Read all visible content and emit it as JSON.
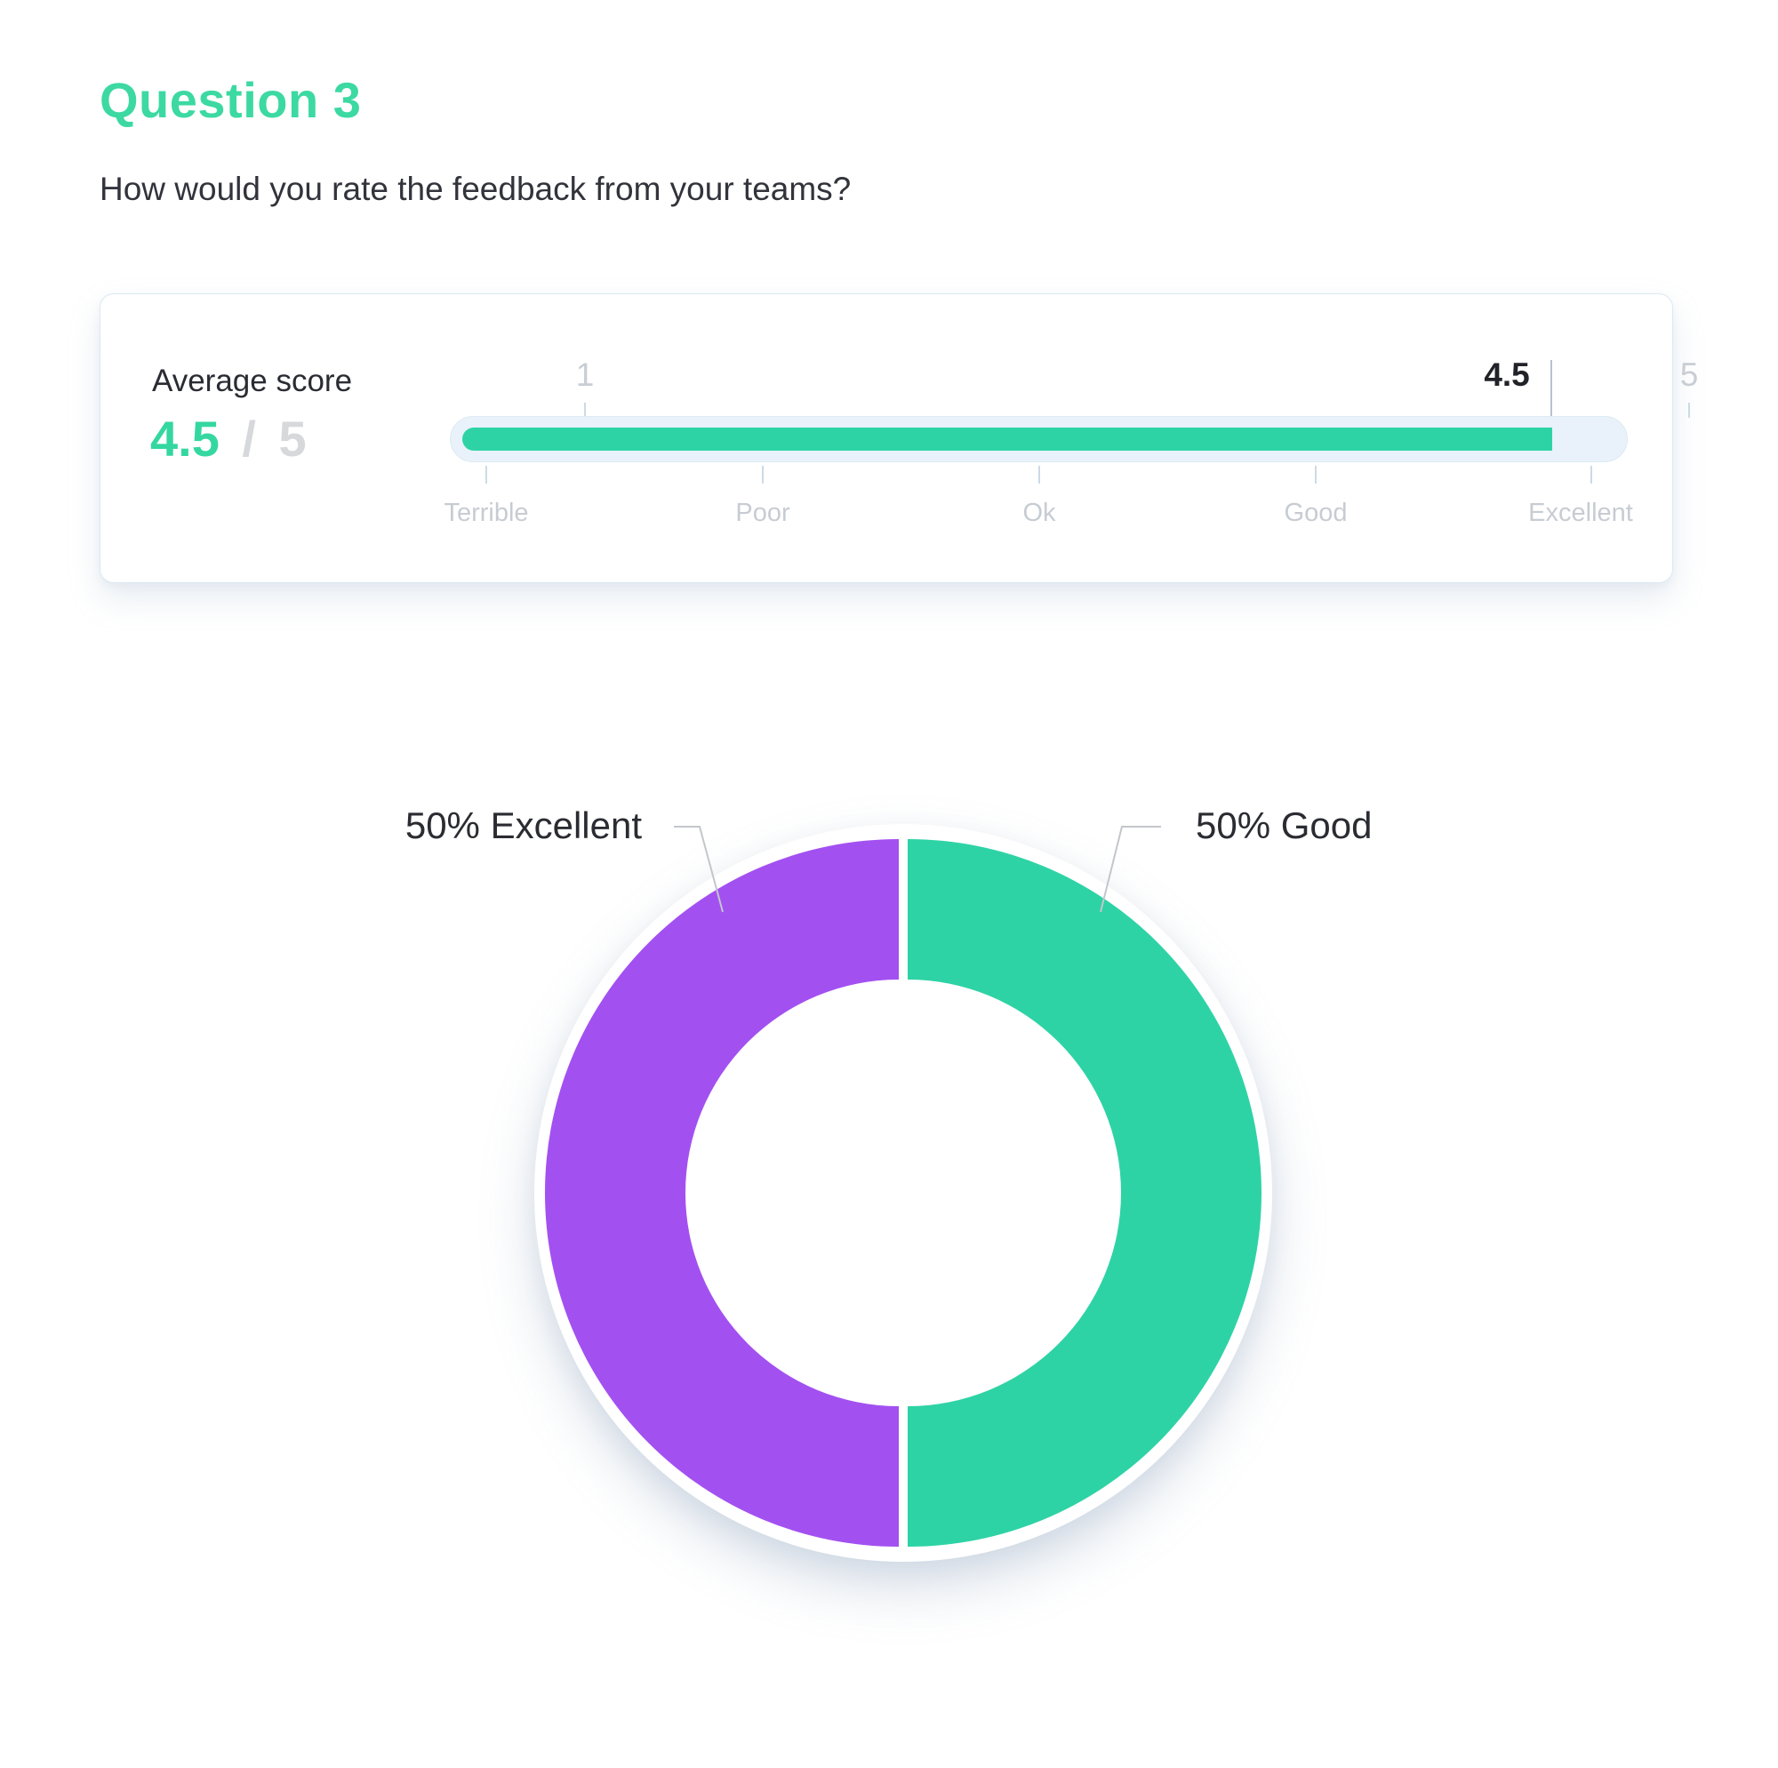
{
  "header": {
    "title": "Question 3",
    "subtitle": "How would you rate the feedback from your teams?"
  },
  "score_card": {
    "label": "Average score",
    "score_value": "4.5",
    "score_separator": "/",
    "score_max": "5",
    "scale": {
      "min": 1,
      "max": 5,
      "value": 4.5,
      "min_label": "1",
      "max_label": "5",
      "value_label": "4.5",
      "tick_labels": [
        "Terrible",
        "Poor",
        "Ok",
        "Good",
        "Excellent"
      ]
    }
  },
  "chart_data": {
    "type": "pie",
    "donut": true,
    "title": "",
    "categories": [
      "Excellent",
      "Good"
    ],
    "values": [
      50,
      50
    ],
    "unit": "percent",
    "callout_labels": [
      "50% Excellent",
      "50% Good"
    ],
    "colors": [
      "#a350f1",
      "#2ed3a5"
    ],
    "legend_position": "callouts",
    "inner_radius_ratio": 0.6,
    "start_angle_deg": 0
  },
  "colors": {
    "title_green": "#3cd9a2",
    "accent_green": "#2ed3a5",
    "purple": "#a350f1",
    "track_blue": "#e9f2fa",
    "muted_text": "#c9ced5",
    "dark_text": "#2b2c33",
    "leader_line": "#c3c6cb"
  }
}
